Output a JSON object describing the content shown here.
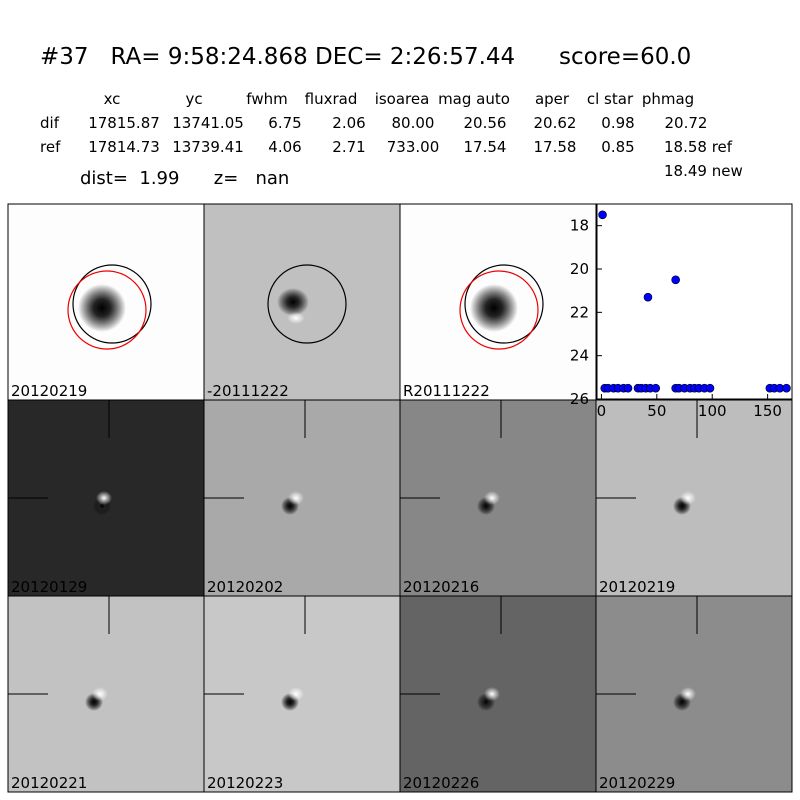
{
  "header": {
    "title": "#37   RA= 9:58:24.868 DEC= 2:26:57.44      score=60.0"
  },
  "table": {
    "columns": [
      "xc",
      "yc",
      "fwhm",
      "fluxrad",
      "isoarea",
      "mag auto",
      "aper",
      "cl star",
      "phmag"
    ],
    "rows": [
      [
        "dif",
        "17815.87",
        "13741.05",
        "6.75",
        "2.06",
        "80.00",
        "20.56",
        "20.62",
        "0.98",
        "20.72"
      ],
      [
        "ref",
        "17814.73",
        "13739.41",
        "4.06",
        "2.71",
        "733.00",
        "17.54",
        "17.58",
        "0.85",
        "18.58 ref"
      ]
    ],
    "extra": "18.49 new"
  },
  "summary": "dist=  1.99      z=   nan",
  "panels": [
    {
      "label": "20120219"
    },
    {
      "label": "-20111222"
    },
    {
      "label": "R20111222"
    },
    {
      "label": "20120129"
    },
    {
      "label": "20120202"
    },
    {
      "label": "20120216"
    },
    {
      "label": "20120219",
      "color": "#ff0000"
    },
    {
      "label": "20120221"
    },
    {
      "label": "20120223"
    },
    {
      "label": "20120226"
    },
    {
      "label": "20120229"
    }
  ],
  "chart_data": {
    "type": "scatter",
    "x": [
      1,
      3,
      6,
      11,
      15,
      20,
      24,
      33,
      36,
      40,
      42,
      44,
      49,
      67,
      67,
      70,
      75,
      80,
      84,
      88,
      93,
      98,
      152,
      156,
      161,
      167
    ],
    "y": [
      17.5,
      25.5,
      25.5,
      25.5,
      25.5,
      25.5,
      25.5,
      25.5,
      25.5,
      25.5,
      21.3,
      25.5,
      25.5,
      20.5,
      25.5,
      25.5,
      25.5,
      25.5,
      25.5,
      25.5,
      25.5,
      25.5,
      25.5,
      25.5,
      25.5,
      25.5
    ],
    "color": "#0000ff",
    "xlim": [
      -4,
      172
    ],
    "ylim": [
      26,
      17
    ],
    "xticks": [
      0,
      50,
      100,
      150
    ],
    "yticks": [
      18,
      20,
      22,
      24,
      26
    ]
  }
}
